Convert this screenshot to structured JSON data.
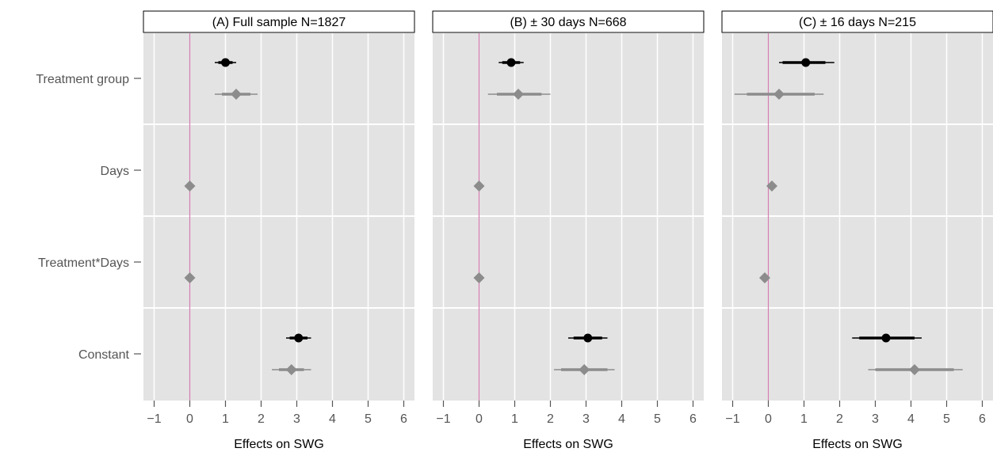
{
  "chart_data": {
    "type": "scatter",
    "subtype": "coefficient-plot-faceted",
    "xlim": [
      -1.3,
      6.3
    ],
    "x_ticks": [
      -1,
      0,
      1,
      2,
      3,
      4,
      5,
      6
    ],
    "x_tick_labels": [
      "−1",
      "0",
      "1",
      "2",
      "3",
      "4",
      "5",
      "6"
    ],
    "xlabel": "Effects on SWG",
    "reference_line": {
      "x": 0,
      "color": "#d17fb0"
    },
    "grid": true,
    "rows": [
      "Treatment group",
      "Days",
      "Treatment*Days",
      "Constant"
    ],
    "series": [
      {
        "marker": "circle",
        "color": "#000000"
      },
      {
        "marker": "diamond",
        "color": "#8c8c8c"
      }
    ],
    "panels": [
      {
        "title": "(A) Full sample N=1827",
        "points": [
          {
            "row": "Treatment group",
            "series": 0,
            "est": 1.0,
            "ci_inner": [
              0.8,
              1.2
            ],
            "ci_outer": [
              0.7,
              1.3
            ]
          },
          {
            "row": "Treatment group",
            "series": 1,
            "est": 1.3,
            "ci_inner": [
              0.9,
              1.7
            ],
            "ci_outer": [
              0.7,
              1.9
            ]
          },
          {
            "row": "Days",
            "series": 1,
            "est": 0.0,
            "ci_inner": [
              0.0,
              0.0
            ],
            "ci_outer": [
              0.0,
              0.0
            ]
          },
          {
            "row": "Treatment*Days",
            "series": 1,
            "est": 0.0,
            "ci_inner": [
              0.0,
              0.0
            ],
            "ci_outer": [
              0.0,
              0.0
            ]
          },
          {
            "row": "Constant",
            "series": 0,
            "est": 3.05,
            "ci_inner": [
              2.8,
              3.3
            ],
            "ci_outer": [
              2.7,
              3.4
            ]
          },
          {
            "row": "Constant",
            "series": 1,
            "est": 2.85,
            "ci_inner": [
              2.5,
              3.2
            ],
            "ci_outer": [
              2.3,
              3.4
            ]
          }
        ]
      },
      {
        "title": "(B) ± 30 days N=668",
        "points": [
          {
            "row": "Treatment group",
            "series": 0,
            "est": 0.9,
            "ci_inner": [
              0.65,
              1.15
            ],
            "ci_outer": [
              0.55,
              1.25
            ]
          },
          {
            "row": "Treatment group",
            "series": 1,
            "est": 1.1,
            "ci_inner": [
              0.5,
              1.75
            ],
            "ci_outer": [
              0.25,
              2.0
            ]
          },
          {
            "row": "Days",
            "series": 1,
            "est": 0.0,
            "ci_inner": [
              0.0,
              0.0
            ],
            "ci_outer": [
              0.0,
              0.0
            ]
          },
          {
            "row": "Treatment*Days",
            "series": 1,
            "est": 0.0,
            "ci_inner": [
              0.0,
              0.0
            ],
            "ci_outer": [
              0.0,
              0.0
            ]
          },
          {
            "row": "Constant",
            "series": 0,
            "est": 3.05,
            "ci_inner": [
              2.65,
              3.45
            ],
            "ci_outer": [
              2.5,
              3.6
            ]
          },
          {
            "row": "Constant",
            "series": 1,
            "est": 2.95,
            "ci_inner": [
              2.3,
              3.6
            ],
            "ci_outer": [
              2.1,
              3.8
            ]
          }
        ]
      },
      {
        "title": "(C) ± 16 days N=215",
        "points": [
          {
            "row": "Treatment group",
            "series": 0,
            "est": 1.05,
            "ci_inner": [
              0.4,
              1.6
            ],
            "ci_outer": [
              0.3,
              1.85
            ]
          },
          {
            "row": "Treatment group",
            "series": 1,
            "est": 0.3,
            "ci_inner": [
              -0.6,
              1.3
            ],
            "ci_outer": [
              -0.95,
              1.55
            ]
          },
          {
            "row": "Days",
            "series": 1,
            "est": 0.1,
            "ci_inner": [
              0.1,
              0.1
            ],
            "ci_outer": [
              0.1,
              0.1
            ]
          },
          {
            "row": "Treatment*Days",
            "series": 1,
            "est": -0.1,
            "ci_inner": [
              -0.1,
              -0.1
            ],
            "ci_outer": [
              -0.1,
              -0.1
            ]
          },
          {
            "row": "Constant",
            "series": 0,
            "est": 3.3,
            "ci_inner": [
              2.55,
              4.1
            ],
            "ci_outer": [
              2.35,
              4.3
            ]
          },
          {
            "row": "Constant",
            "series": 1,
            "est": 4.1,
            "ci_inner": [
              3.0,
              5.2
            ],
            "ci_outer": [
              2.8,
              5.45
            ]
          }
        ]
      }
    ]
  }
}
